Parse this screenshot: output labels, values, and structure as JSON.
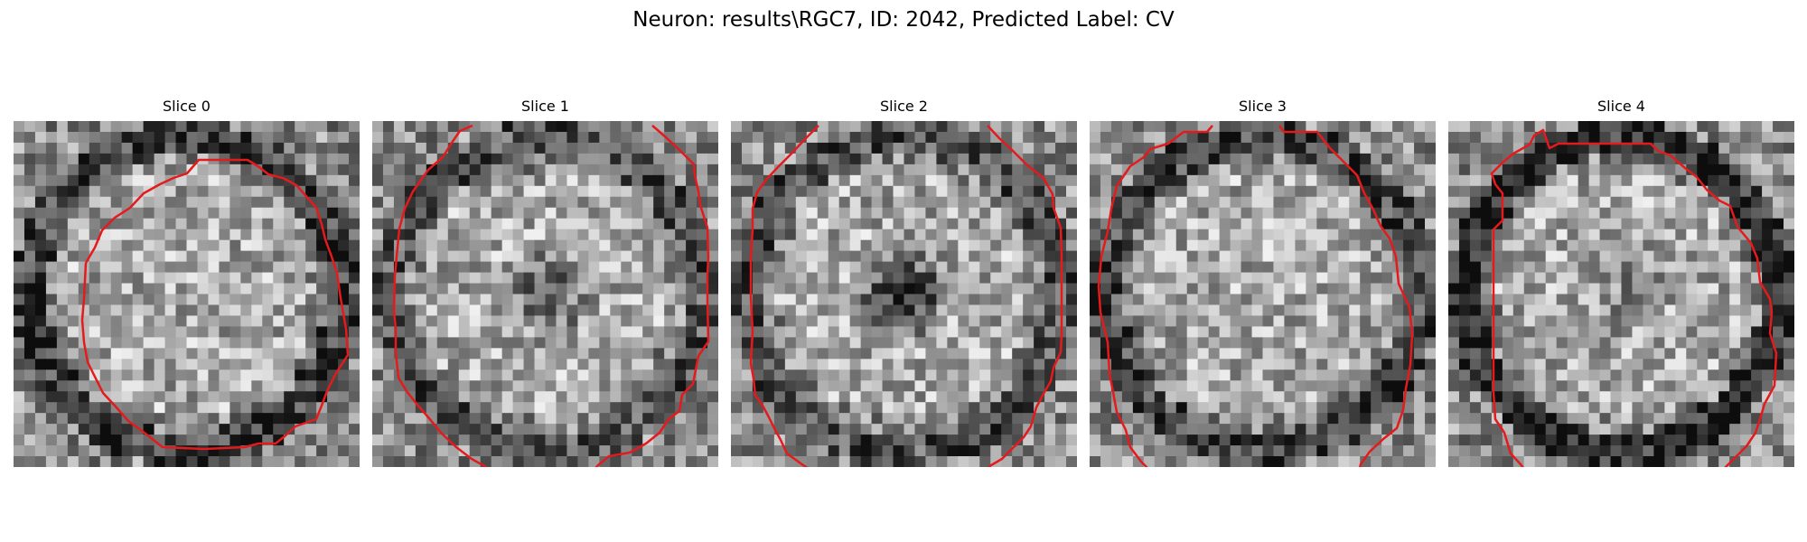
{
  "figure": {
    "title": "Neuron: results\\RGC7, ID: 2042, Predicted Label: CV",
    "overlay_color": "#e41a1c",
    "colormap": "gray",
    "panels": [
      {
        "title": "Slice 0",
        "contour_shape": "closed"
      },
      {
        "title": "Slice 1",
        "contour_shape": "open-top-bottom"
      },
      {
        "title": "Slice 2",
        "contour_shape": "open-top-bottom"
      },
      {
        "title": "Slice 3",
        "contour_shape": "open-bottom"
      },
      {
        "title": "Slice 4",
        "contour_shape": "open-bottom"
      }
    ]
  }
}
